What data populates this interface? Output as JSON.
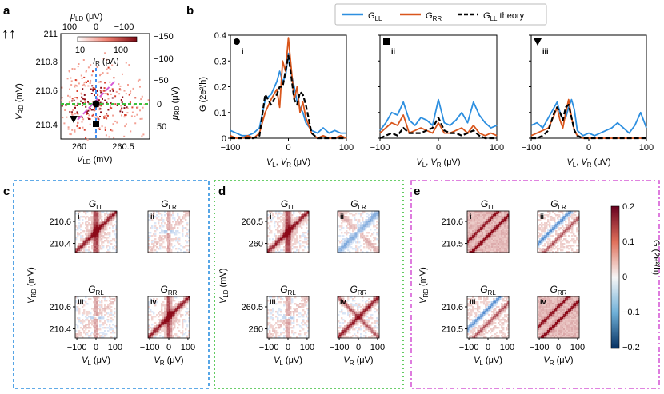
{
  "panel_labels": {
    "a": "a",
    "b": "b",
    "c": "c",
    "d": "d",
    "e": "e"
  },
  "colors": {
    "G_LL": "#2d8fe0",
    "G_RR": "#d9561c",
    "theory": "#000000",
    "frame_c": "#2d8fe0",
    "frame_d": "#3cbf3c",
    "frame_e": "#d65cd6",
    "diag_blue": "#3f8ef0",
    "diag_magenta": "#d65cd6",
    "guide_green": "#3cbf3c"
  },
  "legend": {
    "G_LL": "G",
    "G_LL_sub": "LL",
    "G_RR": "G",
    "G_RR_sub": "RR",
    "theory": "G",
    "theory_sub": "LL",
    "theory_suffix": " theory"
  },
  "panel_a": {
    "arrows": "↑↑",
    "xlabel": "V",
    "xlabel_sub": "LD",
    "xlabel_unit": " (mV)",
    "ylabel": "V",
    "ylabel_sub": "RD",
    "ylabel_unit": " (mV)",
    "top_label": "μ",
    "top_label_sub": "LD",
    "top_label_unit": " (μV)",
    "right_label": "μ",
    "right_label_sub": "RD",
    "right_label_unit": " (μV)",
    "x_ticks": [
      "260",
      "260.5"
    ],
    "y_ticks": [
      "211",
      "210.8",
      "210.6",
      "210.4"
    ],
    "top_ticks": [
      "100",
      "0",
      "−100"
    ],
    "right_ticks": [
      "−150",
      "−100",
      "−50",
      "0",
      "50"
    ],
    "colorbar_ticks": [
      "10",
      "100"
    ],
    "colorbar_label": "I",
    "colorbar_label_sub": "R",
    "colorbar_label_unit": " (pA)",
    "markers": [
      "circle",
      "square",
      "triangle"
    ]
  },
  "chart_data": [
    {
      "type": "line",
      "panel": "b-i",
      "marker": "i",
      "xlabel": "V_L, V_R (μV)",
      "ylabel": "G (2e²/h)",
      "xlim": [
        -100,
        100
      ],
      "ylim": [
        0,
        0.4
      ],
      "x": [
        -100,
        -90,
        -80,
        -70,
        -60,
        -50,
        -40,
        -30,
        -20,
        -15,
        -10,
        -5,
        0,
        5,
        10,
        15,
        20,
        25,
        30,
        40,
        50,
        60,
        70,
        80,
        90,
        100
      ],
      "series": [
        {
          "name": "G_LL",
          "values": [
            0.03,
            0.02,
            0.01,
            0.01,
            0.02,
            0.04,
            0.15,
            0.17,
            0.22,
            0.26,
            0.22,
            0.24,
            0.33,
            0.25,
            0.2,
            0.14,
            0.12,
            0.1,
            0.06,
            0.03,
            0.02,
            0.04,
            0.02,
            0.03,
            0.02,
            0.02
          ]
        },
        {
          "name": "G_RR",
          "values": [
            0.01,
            0.0,
            0.0,
            0.01,
            0.0,
            0.02,
            0.1,
            0.15,
            0.19,
            0.12,
            0.3,
            0.26,
            0.39,
            0.27,
            0.15,
            0.2,
            0.1,
            0.14,
            0.08,
            0.02,
            0.0,
            0.01,
            0.0,
            0.0,
            0.01,
            0.0
          ]
        },
        {
          "name": "G_LL theory",
          "values": [
            0.0,
            0.0,
            0.0,
            0.0,
            0.0,
            0.01,
            0.17,
            0.13,
            0.17,
            0.2,
            0.2,
            0.26,
            0.32,
            0.24,
            0.15,
            0.13,
            0.18,
            0.17,
            0.13,
            0.02,
            0.0,
            0.0,
            0.0,
            0.0,
            0.0,
            0.0
          ]
        }
      ]
    },
    {
      "type": "line",
      "panel": "b-ii",
      "marker": "ii",
      "xlabel": "V_L, V_R (μV)",
      "xlim": [
        -100,
        100
      ],
      "ylim": [
        0,
        0.4
      ],
      "x": [
        -100,
        -90,
        -80,
        -70,
        -60,
        -50,
        -40,
        -30,
        -20,
        -10,
        0,
        10,
        20,
        30,
        40,
        50,
        60,
        70,
        80,
        90,
        100
      ],
      "series": [
        {
          "name": "G_LL",
          "values": [
            0.03,
            0.06,
            0.1,
            0.09,
            0.14,
            0.07,
            0.05,
            0.08,
            0.07,
            0.05,
            0.15,
            0.06,
            0.05,
            0.07,
            0.1,
            0.06,
            0.14,
            0.09,
            0.06,
            0.04,
            0.05
          ]
        },
        {
          "name": "G_RR",
          "values": [
            0.02,
            0.04,
            0.06,
            0.05,
            0.09,
            0.02,
            0.03,
            0.04,
            0.03,
            0.02,
            0.06,
            0.02,
            0.02,
            0.03,
            0.04,
            0.02,
            0.05,
            0.02,
            0.01,
            0.02,
            0.01
          ]
        },
        {
          "name": "G_LL theory",
          "values": [
            0.0,
            0.01,
            0.02,
            0.01,
            0.04,
            0.02,
            0.02,
            0.02,
            0.03,
            0.04,
            0.08,
            0.03,
            0.02,
            0.02,
            0.01,
            0.02,
            0.03,
            0.01,
            0.0,
            0.0,
            0.0
          ]
        }
      ]
    },
    {
      "type": "line",
      "panel": "b-iii",
      "marker": "iii",
      "xlabel": "V_L, V_R (μV)",
      "xlim": [
        -100,
        100
      ],
      "ylim": [
        0,
        0.4
      ],
      "x": [
        -100,
        -90,
        -80,
        -70,
        -60,
        -55,
        -50,
        -45,
        -40,
        -35,
        -30,
        -25,
        -20,
        -10,
        0,
        10,
        20,
        30,
        40,
        50,
        60,
        70,
        80,
        90,
        100
      ],
      "series": [
        {
          "name": "G_LL",
          "values": [
            0.05,
            0.06,
            0.04,
            0.08,
            0.12,
            0.14,
            0.1,
            0.07,
            0.08,
            0.12,
            0.15,
            0.11,
            0.03,
            0.01,
            0.02,
            0.01,
            0.02,
            0.03,
            0.04,
            0.06,
            0.04,
            0.02,
            0.05,
            0.1,
            0.04
          ]
        },
        {
          "name": "G_RR",
          "values": [
            0.01,
            0.02,
            0.03,
            0.04,
            0.09,
            0.12,
            0.07,
            0.04,
            0.1,
            0.15,
            0.08,
            0.03,
            0.01,
            0.0,
            0.0,
            0.0,
            0.0,
            0.0,
            0.0,
            0.0,
            0.0,
            0.0,
            0.0,
            0.0,
            0.0
          ]
        },
        {
          "name": "G_LL theory",
          "values": [
            0.0,
            0.0,
            0.01,
            0.03,
            0.1,
            0.12,
            0.1,
            0.07,
            0.12,
            0.13,
            0.08,
            0.03,
            0.01,
            0.0,
            0.0,
            0.0,
            0.0,
            0.0,
            0.0,
            0.0,
            0.0,
            0.0,
            0.0,
            0.0,
            0.0
          ]
        }
      ]
    },
    {
      "type": "heatmap",
      "panel": "c",
      "ylabel": "V_RD (mV)",
      "subplots": [
        {
          "marker": "i",
          "title": "G_LL",
          "y_ticks": [
            "210.6",
            "210.4"
          ],
          "x_ticks": [],
          "pattern": "diag-strong"
        },
        {
          "marker": "ii",
          "title": "G_LR",
          "pattern": "cross-weak"
        },
        {
          "marker": "iii",
          "title": "G_RL",
          "y_ticks": [
            "210.6",
            "210.4"
          ],
          "x_ticks": [
            "−100",
            "0",
            "100"
          ],
          "xlabel": "V_L (μV)",
          "pattern": "cross-weak"
        },
        {
          "marker": "iv",
          "title": "G_RR",
          "x_ticks": [
            "−100",
            "0",
            "100"
          ],
          "xlabel": "V_R (μV)",
          "pattern": "diag-strong"
        }
      ]
    },
    {
      "type": "heatmap",
      "panel": "d",
      "ylabel": "V_LD (mV)",
      "subplots": [
        {
          "marker": "i",
          "title": "G_LL",
          "y_ticks": [
            "260.5",
            "260"
          ],
          "pattern": "diag-strong"
        },
        {
          "marker": "ii",
          "title": "G_LR",
          "pattern": "diag-anti"
        },
        {
          "marker": "iii",
          "title": "G_RL",
          "y_ticks": [
            "260.5",
            "260"
          ],
          "x_ticks": [
            "−100",
            "0",
            "100"
          ],
          "xlabel": "V_L (μV)",
          "pattern": "cross-weak"
        },
        {
          "marker": "iv",
          "title": "G_RR",
          "x_ticks": [
            "−100",
            "0",
            "100"
          ],
          "xlabel": "V_R (μV)",
          "pattern": "x-strong"
        }
      ]
    },
    {
      "type": "heatmap",
      "panel": "e",
      "ylabel": "V_RD (mV)",
      "colorbar": {
        "ticks": [
          "0.2",
          "0.1",
          "0",
          "−0.1",
          "−0.2"
        ],
        "label": "G (2e²/h)",
        "range": [
          -0.2,
          0.2
        ]
      },
      "subplots": [
        {
          "marker": "i",
          "title": "G_LL",
          "y_ticks": [
            "210.6",
            "210.5"
          ],
          "pattern": "lines-strong"
        },
        {
          "marker": "ii",
          "title": "G_LR",
          "pattern": "lines-mixed"
        },
        {
          "marker": "iii",
          "title": "G_RL",
          "y_ticks": [
            "210.6",
            "210.5"
          ],
          "x_ticks": [
            "−100",
            "0",
            "100"
          ],
          "xlabel": "V_L (μV)",
          "pattern": "lines-mixed"
        },
        {
          "marker": "iv",
          "title": "G_RR",
          "x_ticks": [
            "−100",
            "0",
            "100"
          ],
          "xlabel": "V_R (μV)",
          "pattern": "lines-strong"
        }
      ]
    }
  ]
}
